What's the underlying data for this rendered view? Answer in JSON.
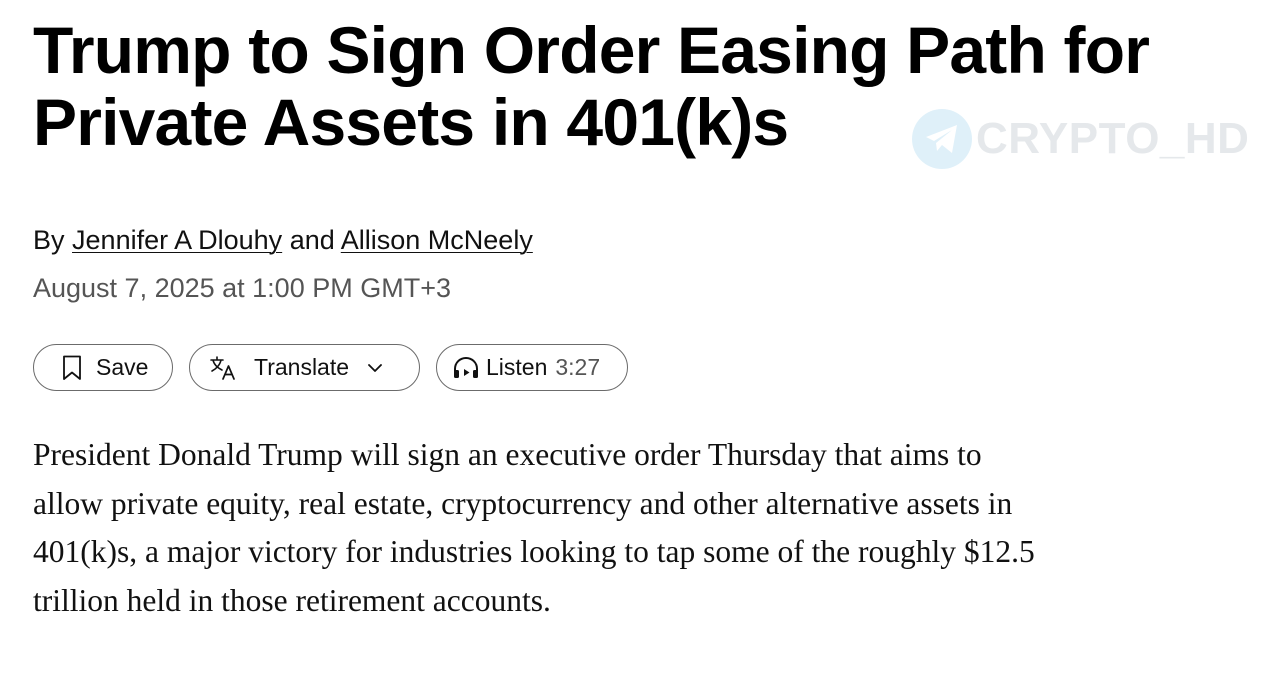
{
  "article": {
    "headline_line1": "Trump to Sign Order Easing Path for",
    "headline_line2": "Private Assets in 401(k)s",
    "byline": {
      "prefix": "By",
      "author1": "Jennifer A Dlouhy",
      "conjunction": "and",
      "author2": "Allison McNeely"
    },
    "date": "August 7, 2025 at 1:00 PM GMT+3",
    "body": "President Donald Trump will sign an executive order Thursday that aims to allow private equity, real estate, cryptocurrency and other alternative assets in 401(k)s, a major victory for industries looking to tap some of the roughly $12.5 trillion held in those retirement accounts."
  },
  "actions": {
    "save_label": "Save",
    "save_icon": "bookmark-icon",
    "translate_label": "Translate",
    "translate_icon": "translate-icon",
    "translate_chevron": "chevron-down-icon",
    "listen_label": "Listen",
    "listen_icon": "headphones-icon",
    "listen_duration": "3:27"
  },
  "watermark": {
    "text": "CRYPTO_HD",
    "icon": "telegram-icon",
    "color": "#e3e6e9"
  }
}
